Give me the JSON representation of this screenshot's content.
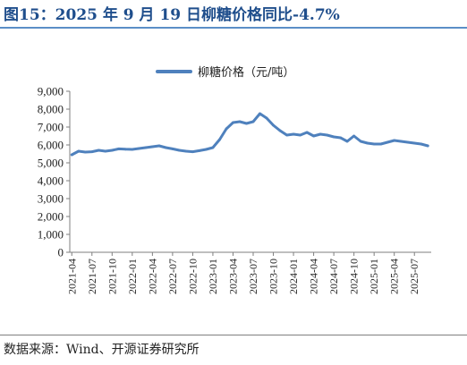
{
  "header": {
    "title": "图15：2025 年 9 月 19 日柳糖价格同比-4.7%"
  },
  "footer": {
    "source": "数据来源：Wind、开源证券研究所"
  },
  "colors": {
    "series": "#4f81bd",
    "title": "#1f4e8c",
    "axis": "#7f7f7f"
  },
  "chart_data": {
    "type": "line",
    "title": "",
    "xlabel": "",
    "ylabel": "",
    "ylim": [
      0,
      9000
    ],
    "grid": false,
    "legend_position": "top-center",
    "y_ticks": [
      "0",
      "1,000",
      "2,000",
      "3,000",
      "4,000",
      "5,000",
      "6,000",
      "7,000",
      "8,000",
      "9,000"
    ],
    "x_ticks": [
      "2021-04",
      "2021-07",
      "2021-10",
      "2022-01",
      "2022-04",
      "2022-07",
      "2022-10",
      "2023-01",
      "2023-04",
      "2023-07",
      "2023-10",
      "2024-01",
      "2024-04",
      "2024-07",
      "2024-10",
      "2025-01",
      "2025-04",
      "2025-07"
    ],
    "series": [
      {
        "name": "柳糖价格（元/吨）",
        "x": [
          "2021-04",
          "2021-05",
          "2021-06",
          "2021-07",
          "2021-08",
          "2021-09",
          "2021-10",
          "2021-11",
          "2021-12",
          "2022-01",
          "2022-02",
          "2022-03",
          "2022-04",
          "2022-05",
          "2022-06",
          "2022-07",
          "2022-08",
          "2022-09",
          "2022-10",
          "2022-11",
          "2022-12",
          "2023-01",
          "2023-02",
          "2023-03",
          "2023-04",
          "2023-05",
          "2023-06",
          "2023-07",
          "2023-08",
          "2023-09",
          "2023-10",
          "2023-11",
          "2023-12",
          "2024-01",
          "2024-02",
          "2024-03",
          "2024-04",
          "2024-05",
          "2024-06",
          "2024-07",
          "2024-08",
          "2024-09",
          "2024-10",
          "2024-11",
          "2024-12",
          "2025-01",
          "2025-02",
          "2025-03",
          "2025-04",
          "2025-05",
          "2025-06",
          "2025-07",
          "2025-08",
          "2025-09"
        ],
        "values": [
          5450,
          5650,
          5600,
          5620,
          5700,
          5650,
          5700,
          5780,
          5760,
          5750,
          5800,
          5850,
          5900,
          5950,
          5850,
          5780,
          5700,
          5650,
          5620,
          5680,
          5750,
          5850,
          6300,
          6900,
          7250,
          7300,
          7200,
          7300,
          7750,
          7500,
          7100,
          6800,
          6550,
          6600,
          6550,
          6700,
          6500,
          6600,
          6550,
          6450,
          6400,
          6200,
          6500,
          6200,
          6100,
          6050,
          6050,
          6150,
          6250,
          6200,
          6150,
          6100,
          6050,
          5950
        ]
      }
    ]
  }
}
